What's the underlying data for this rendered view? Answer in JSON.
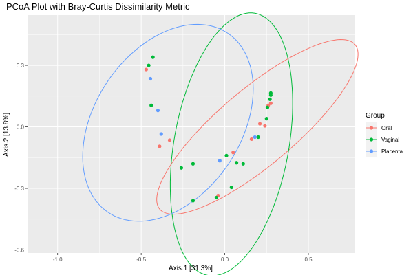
{
  "chart_data": {
    "type": "scatter",
    "title": "PCoA Plot with Bray-Curtis Dissimilarity Metric",
    "xlabel": "Axis.1   [31.3%]",
    "ylabel": "Axis.2   [13.8%]",
    "xlim": [
      -1.18,
      0.78
    ],
    "ylim": [
      -0.615,
      0.545
    ],
    "xticks": [
      -1.0,
      -0.5,
      0.0,
      0.5
    ],
    "xtick_labels": [
      "-1.0",
      "-0.5",
      "0.0",
      "0.5"
    ],
    "yticks": [
      -0.6,
      -0.3,
      0.0,
      0.3
    ],
    "ytick_labels": [
      "-0.6",
      "-0.3",
      "0.0",
      "0.3"
    ],
    "grid": true,
    "legend": {
      "title": "Group",
      "position": "right"
    },
    "series": [
      {
        "name": "Oral",
        "color": "#F8766D",
        "points": [
          [
            -0.47,
            0.28
          ],
          [
            -0.39,
            -0.095
          ],
          [
            -0.33,
            -0.065
          ],
          [
            -0.04,
            -0.335
          ],
          [
            0.05,
            -0.125
          ],
          [
            0.16,
            -0.06
          ],
          [
            0.21,
            0.015
          ],
          [
            0.24,
            0.005
          ],
          [
            0.26,
            0.105
          ],
          [
            0.275,
            0.115
          ]
        ],
        "ellipse": {
          "center": [
            0.195,
            0.0
          ],
          "rx": 0.71,
          "ry": 0.2,
          "rotation_deg": 33.5
        }
      },
      {
        "name": "Vaginal",
        "color": "#00BA38",
        "points": [
          [
            -0.455,
            0.3
          ],
          [
            -0.43,
            0.34
          ],
          [
            -0.44,
            0.105
          ],
          [
            -0.26,
            -0.2
          ],
          [
            -0.19,
            -0.18
          ],
          [
            -0.19,
            -0.36
          ],
          [
            -0.05,
            -0.345
          ],
          [
            0.01,
            -0.14
          ],
          [
            0.04,
            -0.295
          ],
          [
            0.07,
            -0.175
          ],
          [
            0.11,
            -0.18
          ],
          [
            0.2,
            -0.05
          ],
          [
            0.25,
            0.04
          ],
          [
            0.255,
            0.095
          ],
          [
            0.27,
            0.135
          ],
          [
            0.275,
            0.165
          ],
          [
            0.275,
            0.155
          ]
        ],
        "ellipse": {
          "center": [
            0.04,
            -0.085
          ],
          "rx": 0.655,
          "ry": 0.34,
          "rotation_deg": 76
        }
      },
      {
        "name": "Placenta",
        "color": "#619CFF",
        "points": [
          [
            -0.445,
            0.235
          ],
          [
            -0.4,
            0.08
          ],
          [
            -0.38,
            -0.035
          ],
          [
            -0.03,
            -0.165
          ],
          [
            0.18,
            -0.05
          ]
        ],
        "ellipse": {
          "center": [
            -0.34,
            0.02
          ],
          "rx": 0.575,
          "ry": 0.4,
          "rotation_deg": 40
        }
      }
    ]
  }
}
